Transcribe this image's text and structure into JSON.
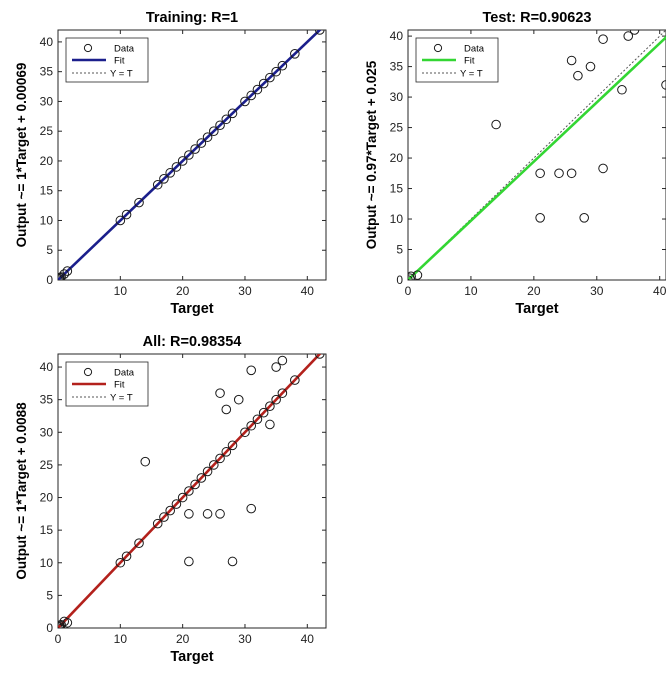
{
  "chart_data": [
    {
      "type": "scatter",
      "title": "Training: R=1",
      "xlabel": "Target",
      "ylabel": "Output ~= 1*Target + 0.00069",
      "xlim": [
        0,
        43
      ],
      "ylim": [
        0,
        42
      ],
      "xticks": [
        10,
        20,
        30,
        40
      ],
      "yticks": [
        0,
        5,
        10,
        15,
        20,
        25,
        30,
        35,
        40
      ],
      "legend": {
        "placement": "top-left",
        "entries": [
          "Data",
          "Fit",
          "Y = T"
        ]
      },
      "fit": {
        "slope": 1,
        "intercept": 0.00069,
        "color": "#1b1f8c"
      },
      "series": [
        {
          "name": "Data",
          "points": [
            [
              0,
              0
            ],
            [
              0.2,
              0.2
            ],
            [
              0.3,
              0.4
            ],
            [
              0.5,
              0.5
            ],
            [
              1,
              1
            ],
            [
              1.5,
              1.5
            ],
            [
              10,
              10
            ],
            [
              11,
              11
            ],
            [
              13,
              13
            ],
            [
              16,
              16
            ],
            [
              17,
              17
            ],
            [
              18,
              18
            ],
            [
              19,
              19
            ],
            [
              20,
              20
            ],
            [
              21,
              21
            ],
            [
              22,
              22
            ],
            [
              23,
              23
            ],
            [
              24,
              24
            ],
            [
              25,
              25
            ],
            [
              26,
              26
            ],
            [
              27,
              27
            ],
            [
              28,
              28
            ],
            [
              30,
              30
            ],
            [
              31,
              31
            ],
            [
              32,
              32
            ],
            [
              33,
              33
            ],
            [
              34,
              34
            ],
            [
              35,
              35
            ],
            [
              36,
              36
            ],
            [
              38,
              38
            ],
            [
              42,
              42
            ]
          ]
        }
      ]
    },
    {
      "type": "scatter",
      "title": "Test: R=0.90623",
      "xlabel": "Target",
      "ylabel": "Output ~= 0.97*Target + 0.025",
      "xlim": [
        0,
        41
      ],
      "ylim": [
        0,
        41
      ],
      "xticks": [
        0,
        10,
        20,
        30,
        40
      ],
      "yticks": [
        0,
        5,
        10,
        15,
        20,
        25,
        30,
        35,
        40
      ],
      "legend": {
        "placement": "top-left",
        "entries": [
          "Data",
          "Fit",
          "Y = T"
        ]
      },
      "fit": {
        "slope": 0.97,
        "intercept": 0.025,
        "color": "#33d633"
      },
      "series": [
        {
          "name": "Data",
          "points": [
            [
              0,
              0
            ],
            [
              0.3,
              0.3
            ],
            [
              0.5,
              0.6
            ],
            [
              1.5,
              0.8
            ],
            [
              14,
              25.5
            ],
            [
              21,
              17.5
            ],
            [
              21,
              10.2
            ],
            [
              24,
              17.5
            ],
            [
              26,
              17.5
            ],
            [
              26,
              36
            ],
            [
              27,
              33.5
            ],
            [
              28,
              10.2
            ],
            [
              29,
              35
            ],
            [
              31,
              39.5
            ],
            [
              31,
              18.3
            ],
            [
              34,
              31.2
            ],
            [
              35,
              40
            ],
            [
              36,
              41
            ],
            [
              41,
              32
            ]
          ]
        }
      ]
    },
    {
      "type": "scatter",
      "title": "All: R=0.98354",
      "xlabel": "Target",
      "ylabel": "Output ~= 1*Target + 0.0088",
      "xlim": [
        0,
        43
      ],
      "ylim": [
        0,
        42
      ],
      "xticks": [
        0,
        10,
        20,
        30,
        40
      ],
      "yticks": [
        0,
        5,
        10,
        15,
        20,
        25,
        30,
        35,
        40
      ],
      "legend": {
        "placement": "top-left",
        "entries": [
          "Data",
          "Fit",
          "Y = T"
        ]
      },
      "fit": {
        "slope": 1,
        "intercept": 0.0088,
        "color": "#b3211c"
      },
      "series": [
        {
          "name": "Data",
          "points": [
            [
              0,
              0
            ],
            [
              0.2,
              0.2
            ],
            [
              0.3,
              0.4
            ],
            [
              0.5,
              0.5
            ],
            [
              1,
              1
            ],
            [
              1.5,
              0.8
            ],
            [
              10,
              10
            ],
            [
              11,
              11
            ],
            [
              13,
              13
            ],
            [
              14,
              25.5
            ],
            [
              16,
              16
            ],
            [
              17,
              17
            ],
            [
              18,
              18
            ],
            [
              19,
              19
            ],
            [
              20,
              20
            ],
            [
              21,
              21
            ],
            [
              21,
              17.5
            ],
            [
              21,
              10.2
            ],
            [
              22,
              22
            ],
            [
              23,
              23
            ],
            [
              24,
              24
            ],
            [
              24,
              17.5
            ],
            [
              25,
              25
            ],
            [
              26,
              26
            ],
            [
              26,
              36
            ],
            [
              26,
              17.5
            ],
            [
              27,
              27
            ],
            [
              27,
              33.5
            ],
            [
              28,
              28
            ],
            [
              28,
              10.2
            ],
            [
              29,
              35
            ],
            [
              30,
              30
            ],
            [
              31,
              31
            ],
            [
              31,
              39.5
            ],
            [
              31,
              18.3
            ],
            [
              32,
              32
            ],
            [
              33,
              33
            ],
            [
              34,
              34
            ],
            [
              34,
              31.2
            ],
            [
              35,
              35
            ],
            [
              35,
              40
            ],
            [
              36,
              36
            ],
            [
              36,
              41
            ],
            [
              38,
              38
            ],
            [
              42,
              42
            ]
          ]
        }
      ]
    }
  ]
}
